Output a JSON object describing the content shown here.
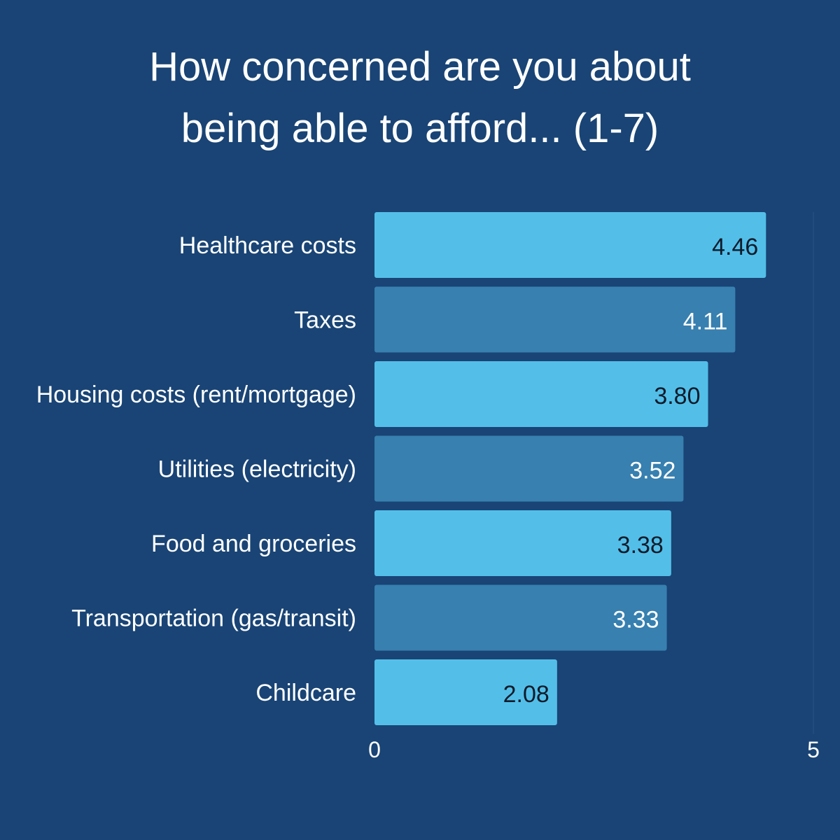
{
  "chart_data": {
    "type": "bar",
    "orientation": "horizontal",
    "title_lines": [
      "How concerned are you about",
      "being able to afford... (1-7)"
    ],
    "categories": [
      "Healthcare costs",
      "Taxes",
      "Housing costs (rent/mortgage)",
      "Utilities (electricity)",
      "Food and groceries",
      "Transportation (gas/transit)",
      "Childcare"
    ],
    "values": [
      4.46,
      4.11,
      3.8,
      3.52,
      3.38,
      3.33,
      2.08
    ],
    "value_labels": [
      "4.46",
      "4.11",
      "3.80",
      "3.52",
      "3.38",
      "3.33",
      "2.08"
    ],
    "xlim": [
      0,
      5
    ],
    "x_ticks": [
      0,
      5
    ],
    "x_tick_labels": [
      "0",
      "5"
    ],
    "grid": false,
    "legend": "none",
    "colors": {
      "background": "#194475",
      "bar_light": "#53bfe9",
      "bar_dark": "#3780b0",
      "label_on_light": "#0d1b2a",
      "label_on_dark": "#ffffff",
      "text": "#ffffff",
      "grid": "#2a5586"
    }
  }
}
